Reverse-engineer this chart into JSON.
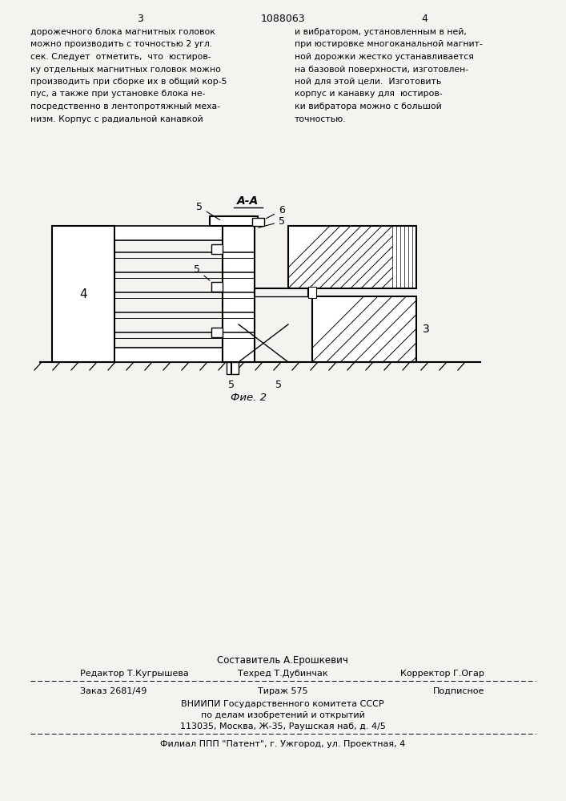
{
  "bg_color": "#f5f3ef",
  "page_num_left": "3",
  "page_num_center": "1088063",
  "page_num_right": "4",
  "col_left_text": [
    "дорожечного блока магнитных головок",
    "можно производить с точностью 2 угл.",
    "сек. Следует  отметить,  что  юстиров-",
    "ку отдельных магнитных головок можно",
    "производить при сборке их в общий кор-5",
    "пус, а также при установке блока не-",
    "посредственно в лентопротяжный меха-",
    "низм. Корпус с радиальной канавкой"
  ],
  "col_right_text": [
    "и вибратором, установленным в ней,",
    "при юстировке многоканальной магнит-",
    "ной дорожки жестко устанавливается",
    "на базовой поверхности, изготовлен-",
    "ной для этой цели.  Изготовить",
    "корпус и канавку для  юстиров-",
    "ки вибратора можно с большой",
    "точностью."
  ],
  "section_label": "A-A",
  "fig_label": "Фие. 2",
  "footer_author": "Составитель А.Ерошкевич",
  "footer_editor_l": "Редактор Т.Кугрышева",
  "footer_editor_m": "Техред Т.Дубинчак",
  "footer_editor_r": "Корректор Г.Огар",
  "footer_order_l": "Заказ 2681/49",
  "footer_order_m": "Тираж 575",
  "footer_order_r": "Подписное",
  "footer_org1": "ВНИИПИ Государственного комитета СССР",
  "footer_org2": "по делам изобретений и открытий",
  "footer_org3": "113035, Москва, Ж-35, Раушская наб, д. 4/5",
  "footer_branch": "Филиал ППП \"Патент\", г. Ужгород, ул. Проектная, 4"
}
